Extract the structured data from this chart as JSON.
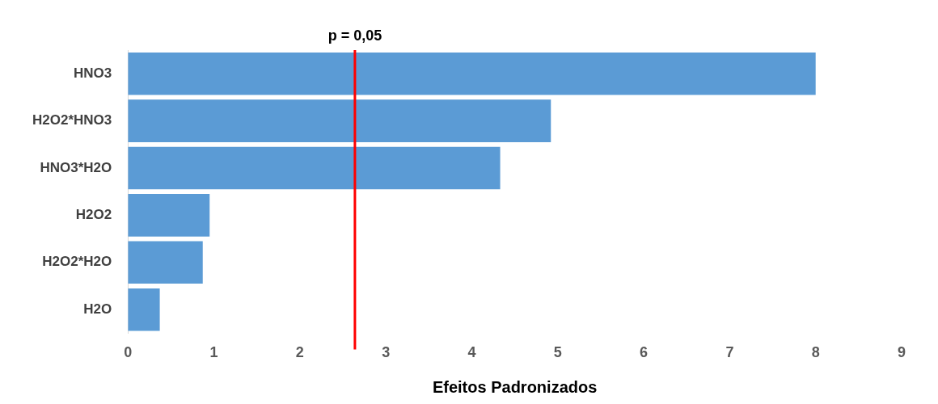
{
  "chart_data": {
    "type": "bar",
    "orientation": "horizontal",
    "xlabel": "Efeitos Padronizados",
    "categories": [
      "HNO3",
      "H2O2*HNO3",
      "HNO3*H2O",
      "H2O2",
      "H2O2*H2O",
      "H2O"
    ],
    "values": [
      8.0,
      4.92,
      4.33,
      0.95,
      0.87,
      0.37
    ],
    "color": "#5b9bd5",
    "xlim": [
      0,
      9
    ],
    "xticks": [
      0,
      1,
      2,
      3,
      4,
      5,
      6,
      7,
      8,
      9
    ],
    "grid": false,
    "legend": false,
    "annotations": [
      "p = 0,05"
    ],
    "ref_lines": [
      {
        "axis": "x",
        "value": 2.64,
        "color": "#ff0000"
      }
    ]
  }
}
